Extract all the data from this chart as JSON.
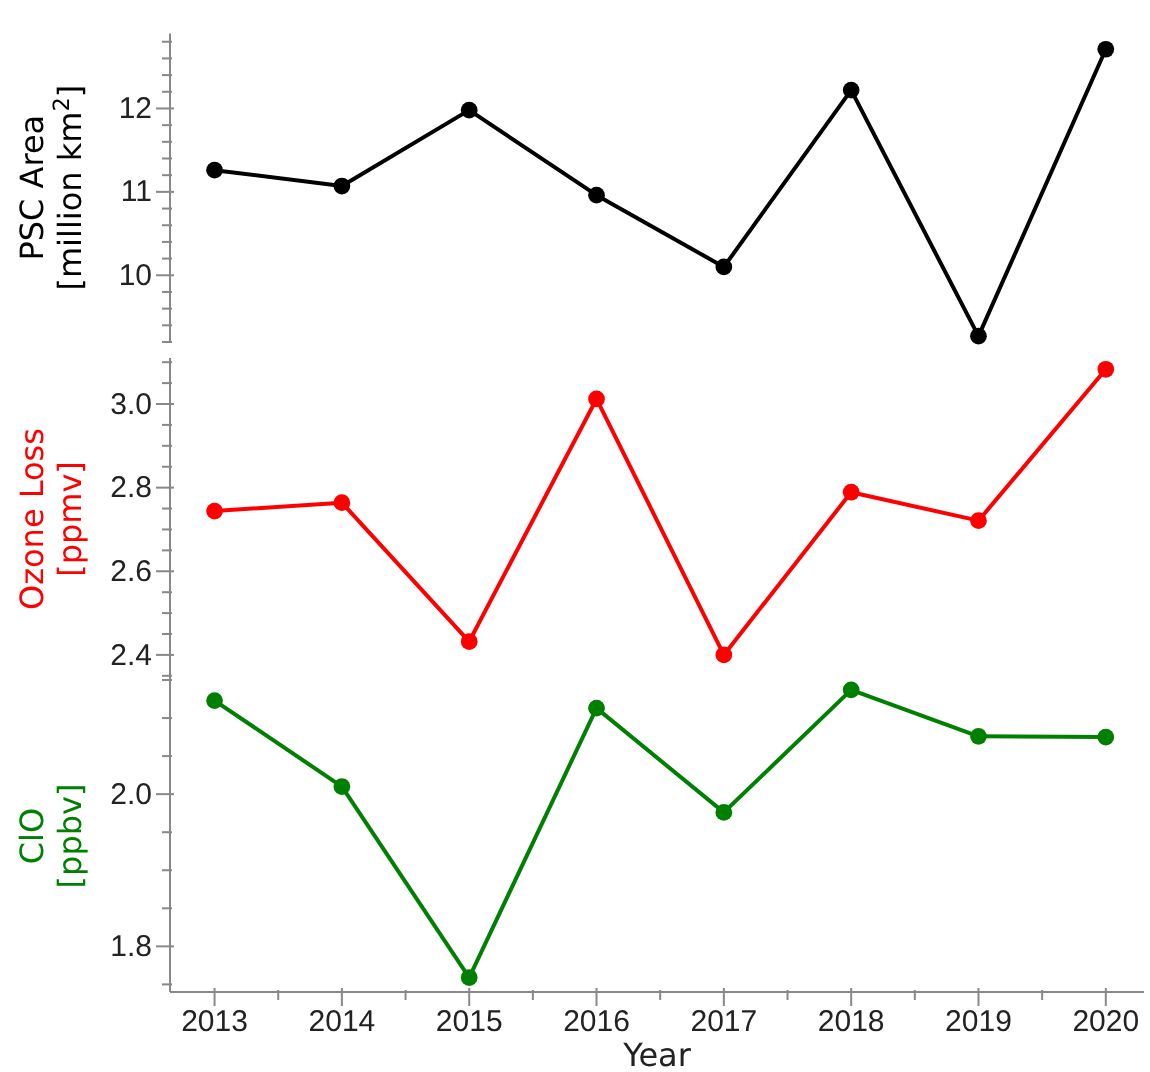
{
  "chart_data": [
    {
      "type": "line",
      "ylabel": "PSC Area\n[million km$^{2}$]",
      "x": [
        2013,
        2014,
        2015,
        2016,
        2017,
        2018,
        2019,
        2020
      ],
      "series": [
        {
          "color": "#000000",
          "values": [
            11.26,
            11.07,
            11.98,
            10.96,
            10.1,
            12.22,
            9.27,
            12.71
          ]
        }
      ],
      "ylim": [
        9.2,
        12.9
      ],
      "yticks": [
        {
          "value": 9.2,
          "label": null
        },
        {
          "value": 9.4,
          "label": null
        },
        {
          "value": 9.6,
          "label": null
        },
        {
          "value": 9.8,
          "label": null
        },
        10,
        {
          "value": 10.2,
          "label": null
        },
        {
          "value": 10.4,
          "label": null
        },
        {
          "value": 10.6,
          "label": null
        },
        {
          "value": 10.8,
          "label": null
        },
        11,
        {
          "value": 11.2,
          "label": null
        },
        {
          "value": 11.4,
          "label": null
        },
        {
          "value": 11.6,
          "label": null
        },
        {
          "value": 11.8,
          "label": null
        },
        12,
        {
          "value": 12.2,
          "label": null
        },
        {
          "value": 12.4,
          "label": null
        },
        {
          "value": 12.6,
          "label": null
        },
        {
          "value": 12.8,
          "label": null
        }
      ],
      "tick_labels": "y",
      "marker": "circle",
      "line_style": "solid"
    },
    {
      "type": "line",
      "ylabel": "Ozone Loss\n[ppmv]",
      "x": [
        2013,
        2014,
        2015,
        2016,
        2017,
        2018,
        2019,
        2020
      ],
      "series": [
        {
          "color": "#ff0000",
          "values": [
            2.744,
            2.764,
            2.432,
            3.012,
            2.4,
            2.789,
            2.721,
            3.083
          ]
        }
      ],
      "ylim": [
        2.34,
        3.11
      ],
      "yticks": [
        {
          "value": 2.35,
          "label": null
        },
        {
          "value": 2.4,
          "label": "2.4"
        },
        {
          "value": 2.45,
          "label": null
        },
        {
          "value": 2.5,
          "label": null
        },
        {
          "value": 2.55,
          "label": null
        },
        {
          "value": 2.6,
          "label": "2.6"
        },
        {
          "value": 2.65,
          "label": null
        },
        {
          "value": 2.7,
          "label": null
        },
        {
          "value": 2.75,
          "label": null
        },
        {
          "value": 2.8,
          "label": "2.8"
        },
        {
          "value": 2.85,
          "label": null
        },
        {
          "value": 2.9,
          "label": null
        },
        {
          "value": 2.95,
          "label": null
        },
        {
          "value": 3.0,
          "label": "3.0"
        },
        {
          "value": 3.05,
          "label": null
        },
        {
          "value": 3.1,
          "label": null
        }
      ],
      "tick_labels": "y",
      "marker": "circle",
      "line_style": "solid"
    },
    {
      "type": "line",
      "xlabel": "Year",
      "ylabel": "ClO\n[ppbv]",
      "x": [
        2013,
        2014,
        2015,
        2016,
        2017,
        2018,
        2019,
        2020
      ],
      "series": [
        {
          "color": "#008000",
          "values": [
            2.123,
            2.01,
            1.759,
            2.113,
            1.976,
            2.137,
            2.076,
            2.075
          ]
        }
      ],
      "xlim": [
        2012.65,
        2020.3
      ],
      "xticks": [
        2013,
        {
          "value": 2013.5,
          "label": null
        },
        2014,
        {
          "value": 2014.5,
          "label": null
        },
        2015,
        {
          "value": 2015.5,
          "label": null
        },
        2016,
        {
          "value": 2016.5,
          "label": null
        },
        2017,
        {
          "value": 2017.5,
          "label": null
        },
        2018,
        {
          "value": 2018.5,
          "label": null
        },
        2019,
        {
          "value": 2019.5,
          "label": null
        },
        2020
      ],
      "ylim": [
        1.74,
        2.15
      ],
      "yticks": [
        {
          "value": 1.75,
          "label": null
        },
        {
          "value": 1.8,
          "label": "1.8"
        },
        {
          "value": 1.85,
          "label": null
        },
        {
          "value": 1.9,
          "label": null
        },
        {
          "value": 1.95,
          "label": null
        },
        {
          "value": 2.0,
          "label": "2.0"
        },
        {
          "value": 2.05,
          "label": null
        },
        {
          "value": 2.1,
          "label": null
        },
        {
          "value": 2.15,
          "label": null
        }
      ],
      "marker": "circle",
      "line_style": "solid"
    }
  ]
}
